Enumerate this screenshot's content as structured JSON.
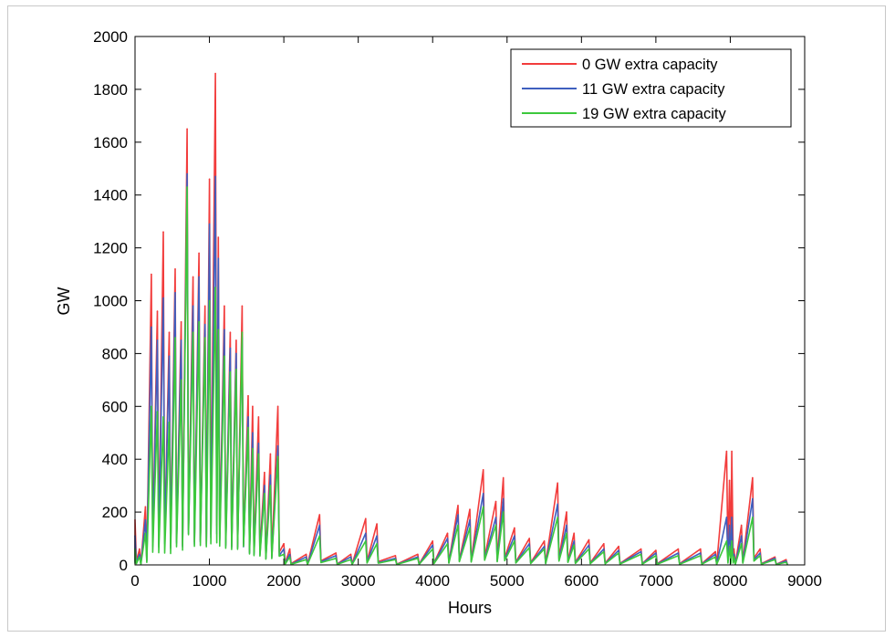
{
  "chart_data": {
    "type": "line",
    "xlabel": "Hours",
    "ylabel": "GW",
    "xlim": [
      0,
      9000
    ],
    "ylim": [
      0,
      2000
    ],
    "x_ticks": [
      0,
      1000,
      2000,
      3000,
      4000,
      5000,
      6000,
      7000,
      8000,
      9000
    ],
    "y_ticks": [
      0,
      200,
      400,
      600,
      800,
      1000,
      1200,
      1400,
      1600,
      1800,
      2000
    ],
    "grid": false,
    "legend_position": "top-right",
    "legend": [
      "0 GW extra capacity",
      "11 GW extra capacity",
      "19 GW extra capacity"
    ],
    "series": [
      {
        "name": "0 GW extra capacity",
        "color": "#f23c3c",
        "x": [
          0,
          60,
          140,
          220,
          300,
          380,
          460,
          540,
          620,
          700,
          780,
          860,
          940,
          1000,
          1080,
          1120,
          1200,
          1280,
          1360,
          1440,
          1520,
          1580,
          1660,
          1740,
          1820,
          1920,
          2000,
          2080,
          2300,
          2480,
          2700,
          2900,
          3100,
          3250,
          3500,
          3800,
          4000,
          4200,
          4340,
          4500,
          4680,
          4850,
          4950,
          5100,
          5300,
          5500,
          5680,
          5800,
          5900,
          6100,
          6300,
          6500,
          6800,
          7000,
          7300,
          7600,
          7800,
          7950,
          7990,
          8020,
          8050,
          8150,
          8300,
          8400,
          8600,
          8750
        ],
        "y": [
          170,
          60,
          220,
          1100,
          960,
          1260,
          880,
          1120,
          920,
          1650,
          1090,
          1180,
          980,
          1460,
          1860,
          1240,
          980,
          880,
          850,
          980,
          640,
          600,
          560,
          350,
          420,
          600,
          80,
          60,
          40,
          190,
          45,
          40,
          175,
          155,
          35,
          40,
          90,
          120,
          225,
          210,
          360,
          240,
          330,
          140,
          100,
          90,
          310,
          200,
          120,
          95,
          80,
          70,
          60,
          55,
          60,
          60,
          50,
          430,
          320,
          430,
          60,
          150,
          330,
          60,
          30,
          20
        ]
      },
      {
        "name": "11 GW extra capacity",
        "color": "#3f5fbf",
        "x": [
          0,
          60,
          140,
          220,
          300,
          380,
          460,
          540,
          620,
          700,
          780,
          860,
          940,
          1000,
          1080,
          1120,
          1200,
          1280,
          1360,
          1440,
          1520,
          1580,
          1660,
          1740,
          1820,
          1920,
          2000,
          2080,
          2300,
          2480,
          2700,
          2900,
          3100,
          3250,
          3500,
          3800,
          4000,
          4200,
          4340,
          4500,
          4680,
          4850,
          4950,
          5100,
          5300,
          5500,
          5680,
          5800,
          5900,
          6100,
          6300,
          6500,
          6800,
          7000,
          7300,
          7600,
          7800,
          7950,
          7990,
          8020,
          8050,
          8150,
          8300,
          8400,
          8600,
          8750
        ],
        "y": [
          110,
          40,
          170,
          900,
          850,
          1010,
          790,
          1030,
          850,
          1480,
          980,
          1090,
          910,
          1290,
          1470,
          1160,
          890,
          820,
          800,
          860,
          560,
          500,
          460,
          300,
          340,
          450,
          60,
          40,
          30,
          150,
          35,
          30,
          120,
          110,
          25,
          30,
          75,
          100,
          190,
          170,
          270,
          180,
          250,
          110,
          80,
          70,
          230,
          150,
          90,
          75,
          60,
          55,
          50,
          45,
          45,
          45,
          40,
          180,
          150,
          180,
          40,
          110,
          250,
          45,
          25,
          15
        ]
      },
      {
        "name": "19 GW extra capacity",
        "color": "#3cc83c",
        "x": [
          0,
          60,
          140,
          220,
          300,
          380,
          460,
          540,
          620,
          700,
          780,
          860,
          940,
          1000,
          1080,
          1120,
          1200,
          1280,
          1360,
          1440,
          1520,
          1580,
          1660,
          1740,
          1820,
          1920,
          2000,
          2080,
          2300,
          2480,
          2700,
          2900,
          3100,
          3250,
          3500,
          3800,
          4000,
          4200,
          4340,
          4500,
          4680,
          4850,
          4950,
          5100,
          5300,
          5500,
          5680,
          5800,
          5900,
          6100,
          6300,
          6500,
          6800,
          7000,
          7300,
          7600,
          7800,
          7950,
          7990,
          8020,
          8050,
          8150,
          8300,
          8400,
          8600,
          8750
        ],
        "y": [
          60,
          30,
          120,
          600,
          580,
          560,
          540,
          860,
          700,
          1430,
          880,
          920,
          860,
          1000,
          1050,
          890,
          790,
          730,
          740,
          880,
          520,
          440,
          420,
          270,
          300,
          410,
          40,
          30,
          20,
          110,
          25,
          20,
          90,
          80,
          20,
          25,
          60,
          80,
          150,
          140,
          220,
          150,
          200,
          90,
          65,
          60,
          180,
          120,
          75,
          60,
          50,
          45,
          40,
          35,
          35,
          35,
          30,
          90,
          70,
          90,
          30,
          80,
          180,
          35,
          20,
          10
        ]
      }
    ]
  }
}
